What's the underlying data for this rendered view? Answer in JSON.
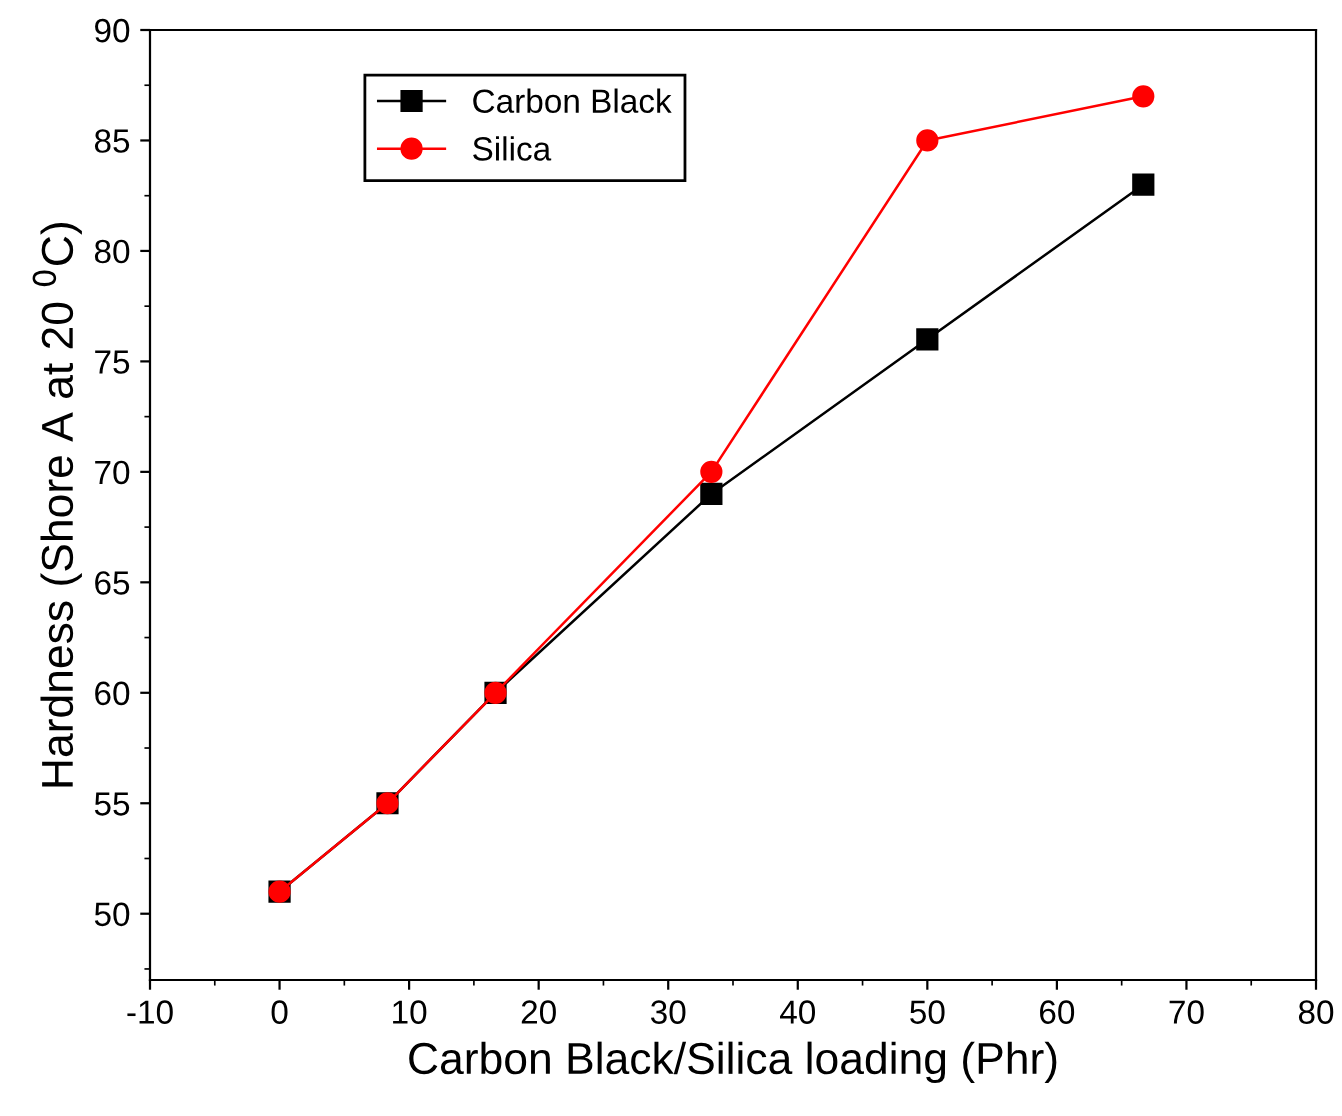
{
  "chart_data": {
    "type": "line",
    "xlabel": "Carbon Black/Silica loading (Phr)",
    "ylabel": "Hardness (Shore A at 20 $^{0}$C)",
    "x": [
      0,
      8.33,
      16.67,
      33.33,
      50,
      66.67
    ],
    "series": [
      {
        "name": "Carbon Black",
        "color": "#000000",
        "marker": "square",
        "values": [
          51,
          55,
          60,
          69,
          76,
          83
        ]
      },
      {
        "name": "Silica",
        "color": "#ff0000",
        "marker": "circle",
        "values": [
          51,
          55,
          60,
          70,
          85,
          87
        ]
      }
    ],
    "xlim": [
      -10,
      80
    ],
    "xticks": [
      -10,
      0,
      10,
      20,
      30,
      40,
      50,
      60,
      70,
      80
    ],
    "ylim": [
      47,
      90
    ],
    "yticks": [
      50,
      55,
      60,
      65,
      70,
      75,
      80,
      85,
      90
    ],
    "grid": false,
    "legend": "top left",
    "line_style": "solid"
  }
}
